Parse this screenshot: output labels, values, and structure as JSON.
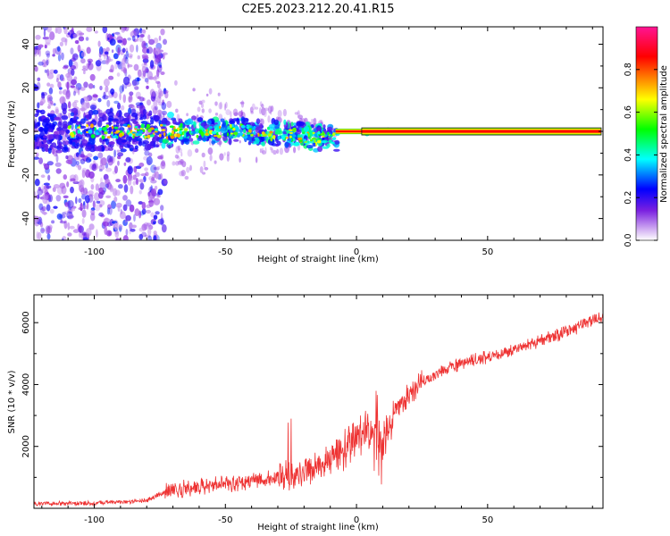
{
  "chart_data": [
    {
      "type": "heatmap",
      "title": "C2E5.2023.212.20.41.R15",
      "xlabel": "Height of straight line (km)",
      "ylabel": "Frequency (Hz)",
      "xlim": [
        -123,
        94
      ],
      "ylim": [
        -50,
        48
      ],
      "xticks": [
        -100,
        -50,
        0,
        50
      ],
      "yticks": [
        -40,
        -20,
        0,
        20,
        40
      ],
      "colorbar": {
        "label": "Normalized spectral amplitude",
        "range": [
          0,
          1
        ],
        "ticks": [
          "0.0",
          "0.2",
          "0.4",
          "0.6",
          "0.8"
        ],
        "tick_values": [
          0.0,
          0.2,
          0.4,
          0.6,
          0.8
        ],
        "colormap": [
          "#ffffff",
          "#8a2be2",
          "#0000ff",
          "#00ffff",
          "#00ff00",
          "#ffff00",
          "#ff8000",
          "#ff0000",
          "#ff1493"
        ]
      },
      "features": {
        "noise_region_x": [
          -123,
          -75
        ],
        "scintillation_region_x": [
          -75,
          -8
        ],
        "ridge_start_x": 0,
        "ridge_frequency": 0,
        "ridge_value": 0.95
      }
    },
    {
      "type": "line",
      "xlabel": "Height of straight line (km)",
      "ylabel": "SNR (10 * v/v)",
      "xlim": [
        -123,
        94
      ],
      "ylim": [
        0,
        6900
      ],
      "xticks": [
        -100,
        -50,
        0,
        50
      ],
      "yticks": [
        2000,
        4000,
        6000
      ],
      "series": [
        {
          "name": "SNR",
          "color": "#ee3333",
          "trend_x": [
            -123,
            -100,
            -80,
            -73,
            -60,
            -40,
            -25,
            -15,
            -5,
            0,
            5,
            8,
            10,
            12,
            15,
            25,
            40,
            60,
            80,
            94
          ],
          "trend_y": [
            150,
            170,
            250,
            550,
            700,
            900,
            1000,
            1300,
            1900,
            2300,
            2600,
            2700,
            2000,
            2600,
            3200,
            4100,
            4700,
            5100,
            5700,
            6200
          ]
        }
      ]
    }
  ]
}
